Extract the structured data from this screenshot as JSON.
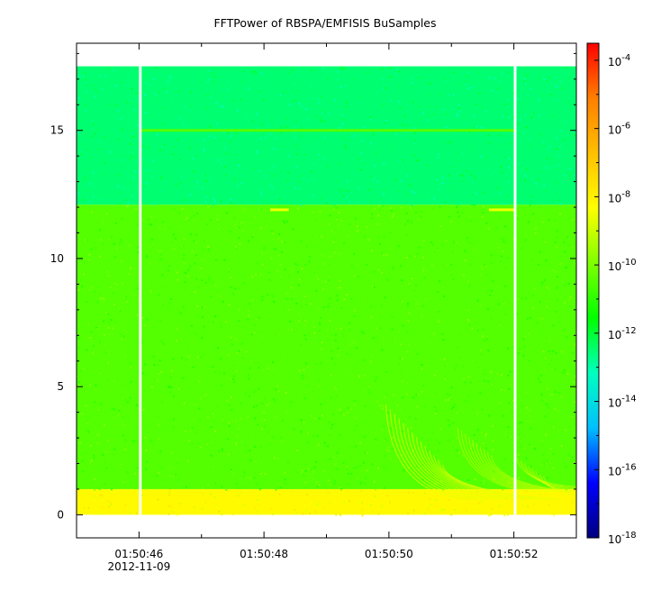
{
  "chart_data": {
    "type": "heatmap",
    "title": "FFTPower of RBSPA/EMFISIS  BuSamples",
    "xlabel": "",
    "ylabel": "",
    "x_tick_labels": [
      "01:50:46",
      "01:50:48",
      "01:50:50",
      "01:50:52"
    ],
    "x_date_label": "2012-11-09",
    "x_tick_values_sec": [
      46,
      48,
      50,
      52
    ],
    "xlim_sec": [
      45,
      53
    ],
    "y_ticks": [
      0,
      5,
      10,
      15
    ],
    "ylim": [
      -0.9,
      18.4
    ],
    "colorbar": {
      "scale": "log",
      "tick_base": "10",
      "tick_exponents": [
        "-4",
        "-6",
        "-8",
        "-10",
        "-12",
        "-14",
        "-16",
        "-18"
      ],
      "range_exp": [
        -18,
        -3.5
      ],
      "colors": [
        "#00007f",
        "#0000ff",
        "#00bfff",
        "#00ffbf",
        "#00ff00",
        "#7fff00",
        "#ffff00",
        "#ffbf00",
        "#ff7f00",
        "#ff0000"
      ]
    },
    "data_gaps_sec": [
      46.02,
      52.02
    ],
    "regions": [
      {
        "y_from": 12.1,
        "y_to": 17.5,
        "log_power": -12.5
      },
      {
        "y_from": 1.0,
        "y_to": 12.1,
        "log_power": -10.5
      },
      {
        "y_from": 0.0,
        "y_to": 1.0,
        "log_power": -8.2
      }
    ],
    "data_extent": {
      "x_from_sec": 45,
      "x_to_sec": 53,
      "y_from": 0.0,
      "y_to": 17.5
    },
    "features": [
      {
        "name": "line",
        "y": 15.0,
        "x_from_sec": 46.0,
        "x_to_sec": 52.0,
        "log_power": -10.5
      },
      {
        "name": "burst",
        "y": 11.9,
        "x_from_sec": 48.1,
        "x_to_sec": 48.4,
        "log_power": -8.5
      },
      {
        "name": "burst",
        "y": 11.9,
        "x_from_sec": 51.6,
        "x_to_sec": 52.0,
        "log_power": -8.5
      }
    ]
  }
}
